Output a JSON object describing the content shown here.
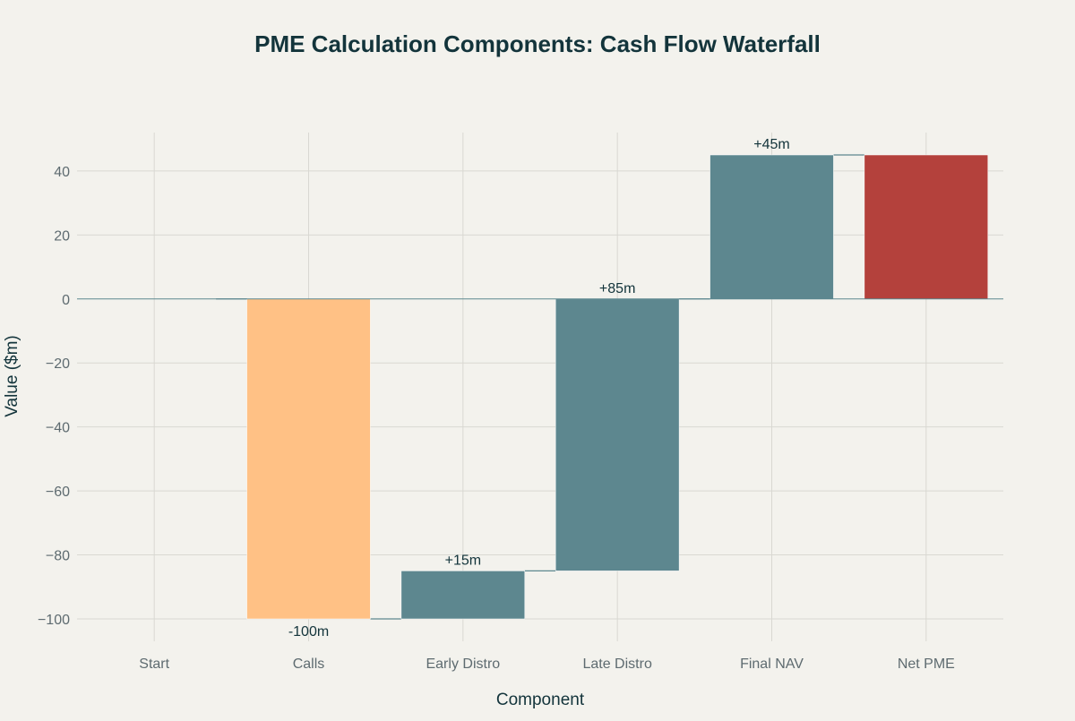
{
  "chart_data": {
    "type": "bar",
    "subtype": "waterfall",
    "title": "PME Calculation Components: Cash Flow Waterfall",
    "xlabel": "Component",
    "ylabel": "Value ($m)",
    "ylim": [
      -107,
      52
    ],
    "yticks": [
      40,
      20,
      0,
      -20,
      -40,
      -60,
      -80,
      -100
    ],
    "ytick_labels": [
      "40",
      "20",
      "0",
      "−20",
      "−40",
      "−60",
      "−80",
      "−100"
    ],
    "grid": true,
    "categories": [
      "Start",
      "Calls",
      "Early Distro",
      "Late Distro",
      "Final NAV",
      "Net PME"
    ],
    "bars": [
      {
        "category": "Start",
        "start": 0,
        "end": 0,
        "kind": "start",
        "label": ""
      },
      {
        "category": "Calls",
        "start": 0,
        "end": -100,
        "kind": "decrease",
        "label": "-100m"
      },
      {
        "category": "Early Distro",
        "start": -100,
        "end": -85,
        "kind": "increase",
        "label": "+15m"
      },
      {
        "category": "Late Distro",
        "start": -85,
        "end": 0,
        "kind": "increase",
        "label": "+85m"
      },
      {
        "category": "Final NAV",
        "start": 0,
        "end": 45,
        "kind": "increase",
        "label": "+45m"
      },
      {
        "category": "Net PME",
        "start": 0,
        "end": 45,
        "kind": "total",
        "label": ""
      }
    ],
    "colors": {
      "decrease": "#FFC185",
      "increase": "#5D878F",
      "total": "#B4413C",
      "connector": "#5D878F",
      "zero_line": "#5D878F",
      "grid": "#D9D8D2",
      "background": "#F3F2ED",
      "title": "#13343B",
      "tick": "#5E6B70"
    }
  }
}
